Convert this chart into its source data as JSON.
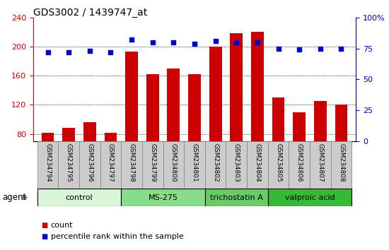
{
  "title": "GDS3002 / 1439747_at",
  "samples": [
    "GSM234794",
    "GSM234795",
    "GSM234796",
    "GSM234797",
    "GSM234798",
    "GSM234799",
    "GSM234800",
    "GSM234801",
    "GSM234802",
    "GSM234803",
    "GSM234804",
    "GSM234805",
    "GSM234806",
    "GSM234807",
    "GSM234808"
  ],
  "counts": [
    82,
    88,
    96,
    82,
    193,
    162,
    170,
    162,
    200,
    218,
    220,
    130,
    110,
    125,
    120
  ],
  "percentiles": [
    72,
    72,
    73,
    72,
    82,
    80,
    80,
    79,
    81,
    80,
    80,
    75,
    74,
    75,
    75
  ],
  "groups": [
    {
      "label": "control",
      "start": 0,
      "end": 4,
      "color": "#d8f5d8"
    },
    {
      "label": "MS-275",
      "start": 4,
      "end": 8,
      "color": "#88dd88"
    },
    {
      "label": "trichostatin A",
      "start": 8,
      "end": 11,
      "color": "#66cc66"
    },
    {
      "label": "valproic acid",
      "start": 11,
      "end": 15,
      "color": "#33bb33"
    }
  ],
  "bar_color": "#cc0000",
  "dot_color": "#0000cc",
  "ylim_left": [
    70,
    240
  ],
  "yticks_left": [
    80,
    120,
    160,
    200,
    240
  ],
  "ylim_right": [
    0,
    100
  ],
  "yticks_right": [
    0,
    25,
    50,
    75,
    100
  ],
  "left_axis_color": "#cc0000",
  "right_axis_color": "#0000cc",
  "agent_label": "agent",
  "legend_count_label": "count",
  "legend_pct_label": "percentile rank within the sample",
  "tick_bg_color": "#cccccc",
  "tick_border_color": "#888888"
}
